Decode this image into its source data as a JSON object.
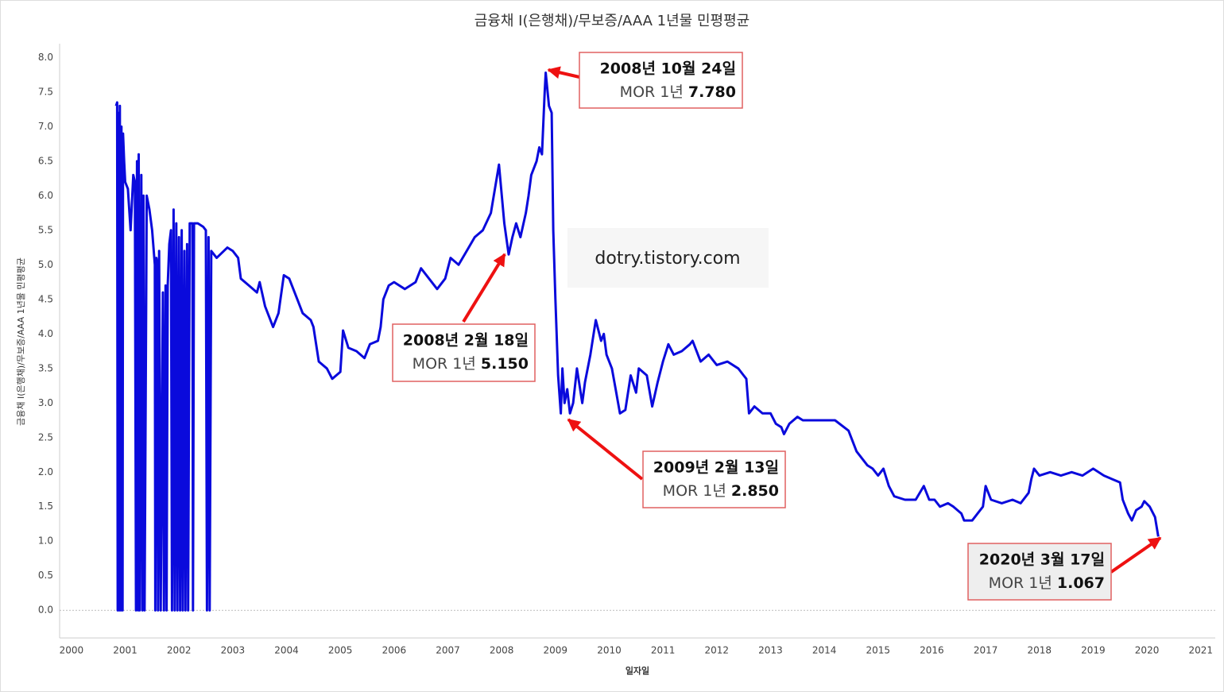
{
  "chart_data": {
    "type": "line",
    "title": "금융채 I(은행채)/무보증/AAA 1년물 민평평균",
    "x_label": "일자일",
    "y_label": "금융채 I(은행채)/무보증/AAA 1년물 민평평균",
    "watermark": "dotry.tistory.com",
    "color": "#0a0adc",
    "xlim": [
      1999.78,
      2021.27
    ],
    "ylim": [
      -0.4,
      8.2
    ],
    "xticks": [
      2000,
      2001,
      2002,
      2003,
      2004,
      2005,
      2006,
      2007,
      2008,
      2009,
      2010,
      2011,
      2012,
      2013,
      2014,
      2015,
      2016,
      2017,
      2018,
      2019,
      2020,
      2021
    ],
    "yticks": [
      {
        "value": 0,
        "label": "0.0"
      },
      {
        "value": 0.5,
        "label": "0.5"
      },
      {
        "value": 1,
        "label": "1.0"
      },
      {
        "value": 1.5,
        "label": "1.5"
      },
      {
        "value": 2,
        "label": "2.0"
      },
      {
        "value": 2.5,
        "label": "2.5"
      },
      {
        "value": 3,
        "label": "3.0"
      },
      {
        "value": 3.5,
        "label": "3.5"
      },
      {
        "value": 4,
        "label": "4.0"
      },
      {
        "value": 4.5,
        "label": "4.5"
      },
      {
        "value": 5,
        "label": "5.0"
      },
      {
        "value": 5.5,
        "label": "5.5"
      },
      {
        "value": 6,
        "label": "6.0"
      },
      {
        "value": 6.5,
        "label": "6.5"
      },
      {
        "value": 7,
        "label": "7.0"
      },
      {
        "value": 7.5,
        "label": "7.5"
      },
      {
        "value": 8,
        "label": "8.0"
      }
    ],
    "x": [
      2000.83,
      2000.85,
      2000.86,
      2000.87,
      2000.89,
      2000.9,
      2000.92,
      2000.93,
      2000.95,
      2000.96,
      2000.98,
      2001.0,
      2001.05,
      2001.1,
      2001.15,
      2001.18,
      2001.2,
      2001.22,
      2001.24,
      2001.25,
      2001.27,
      2001.3,
      2001.32,
      2001.34,
      2001.36,
      2001.4,
      2001.45,
      2001.5,
      2001.55,
      2001.56,
      2001.58,
      2001.6,
      2001.61,
      2001.63,
      2001.66,
      2001.7,
      2001.72,
      2001.75,
      2001.77,
      2001.79,
      2001.82,
      2001.85,
      2001.87,
      2001.9,
      2001.92,
      2001.95,
      2001.97,
      2002.0,
      2002.02,
      2002.05,
      2002.07,
      2002.1,
      2002.12,
      2002.15,
      2002.17,
      2002.2,
      2002.25,
      2002.26,
      2002.28,
      2002.35,
      2002.45,
      2002.5,
      2002.52,
      2002.55,
      2002.57,
      2002.6,
      2002.7,
      2002.9,
      2003.0,
      2003.1,
      2003.15,
      2003.3,
      2003.45,
      2003.5,
      2003.6,
      2003.75,
      2003.85,
      2003.95,
      2004.05,
      2004.2,
      2004.3,
      2004.45,
      2004.5,
      2004.6,
      2004.75,
      2004.85,
      2005.0,
      2005.05,
      2005.15,
      2005.3,
      2005.45,
      2005.55,
      2005.7,
      2005.75,
      2005.8,
      2005.9,
      2006.0,
      2006.2,
      2006.4,
      2006.5,
      2006.7,
      2006.8,
      2006.95,
      2007.05,
      2007.2,
      2007.35,
      2007.5,
      2007.65,
      2007.8,
      2007.95,
      2008.05,
      2008.13,
      2008.2,
      2008.27,
      2008.35,
      2008.45,
      2008.5,
      2008.55,
      2008.65,
      2008.7,
      2008.75,
      2008.8,
      2008.82,
      2008.88,
      2008.93,
      2008.96,
      2009.0,
      2009.05,
      2009.1,
      2009.13,
      2009.17,
      2009.22,
      2009.27,
      2009.33,
      2009.4,
      2009.5,
      2009.55,
      2009.65,
      2009.75,
      2009.85,
      2009.9,
      2009.95,
      2010.05,
      2010.12,
      2010.2,
      2010.3,
      2010.4,
      2010.5,
      2010.55,
      2010.7,
      2010.8,
      2010.9,
      2011.0,
      2011.1,
      2011.2,
      2011.35,
      2011.5,
      2011.55,
      2011.7,
      2011.85,
      2012.0,
      2012.2,
      2012.4,
      2012.5,
      2012.55,
      2012.6,
      2012.7,
      2012.85,
      2013.0,
      2013.1,
      2013.2,
      2013.25,
      2013.35,
      2013.5,
      2013.6,
      2013.9,
      2014.2,
      2014.45,
      2014.6,
      2014.8,
      2014.9,
      2015.0,
      2015.1,
      2015.2,
      2015.3,
      2015.5,
      2015.7,
      2015.85,
      2015.95,
      2016.05,
      2016.15,
      2016.3,
      2016.4,
      2016.55,
      2016.6,
      2016.75,
      2016.85,
      2016.95,
      2017.0,
      2017.1,
      2017.3,
      2017.5,
      2017.65,
      2017.8,
      2017.85,
      2017.9,
      2018.0,
      2018.2,
      2018.4,
      2018.6,
      2018.8,
      2019.0,
      2019.2,
      2019.35,
      2019.5,
      2019.55,
      2019.65,
      2019.72,
      2019.8,
      2019.9,
      2019.95,
      2020.05,
      2020.15,
      2020.21
    ],
    "values": [
      7.3,
      7.35,
      0,
      7.2,
      0,
      7.3,
      0,
      7.0,
      0,
      6.9,
      6.5,
      6.2,
      6.1,
      5.5,
      6.3,
      6.2,
      0,
      6.5,
      0,
      6.6,
      0,
      6.3,
      0,
      6.0,
      0,
      6.0,
      5.8,
      5.5,
      5.0,
      0,
      5.1,
      5.0,
      0,
      5.2,
      0,
      4.6,
      0,
      4.7,
      0,
      4.7,
      5.3,
      5.5,
      0,
      5.8,
      0,
      5.6,
      0,
      5.4,
      0,
      5.5,
      0,
      5.2,
      0,
      5.3,
      0,
      5.6,
      5.6,
      0,
      5.6,
      5.6,
      5.55,
      5.5,
      0,
      5.4,
      0,
      5.2,
      5.1,
      5.25,
      5.2,
      5.1,
      4.8,
      4.7,
      4.6,
      4.75,
      4.4,
      4.1,
      4.3,
      4.85,
      4.8,
      4.5,
      4.3,
      4.2,
      4.1,
      3.6,
      3.5,
      3.35,
      3.45,
      4.05,
      3.8,
      3.75,
      3.65,
      3.85,
      3.9,
      4.1,
      4.5,
      4.7,
      4.75,
      4.65,
      4.75,
      4.95,
      4.75,
      4.65,
      4.8,
      5.1,
      5.0,
      5.2,
      5.4,
      5.5,
      5.75,
      6.45,
      5.6,
      5.15,
      5.4,
      5.6,
      5.4,
      5.75,
      6.0,
      6.3,
      6.5,
      6.7,
      6.6,
      7.5,
      7.78,
      7.3,
      7.2,
      5.5,
      4.5,
      3.4,
      2.85,
      3.5,
      3.0,
      3.2,
      2.85,
      3.0,
      3.5,
      3.0,
      3.3,
      3.7,
      4.2,
      3.9,
      4.0,
      3.7,
      3.5,
      3.2,
      2.85,
      2.9,
      3.4,
      3.15,
      3.5,
      3.4,
      2.95,
      3.3,
      3.6,
      3.85,
      3.7,
      3.75,
      3.85,
      3.9,
      3.6,
      3.7,
      3.55,
      3.6,
      3.5,
      3.4,
      3.35,
      2.85,
      2.95,
      2.85,
      2.85,
      2.7,
      2.65,
      2.55,
      2.7,
      2.8,
      2.75,
      2.75,
      2.75,
      2.6,
      2.3,
      2.1,
      2.05,
      1.95,
      2.05,
      1.8,
      1.65,
      1.6,
      1.6,
      1.8,
      1.6,
      1.6,
      1.5,
      1.55,
      1.5,
      1.4,
      1.3,
      1.3,
      1.4,
      1.5,
      1.8,
      1.6,
      1.55,
      1.6,
      1.55,
      1.7,
      1.9,
      2.05,
      1.95,
      2.0,
      1.95,
      2.0,
      1.95,
      2.05,
      1.95,
      1.9,
      1.85,
      1.6,
      1.4,
      1.3,
      1.45,
      1.5,
      1.58,
      1.5,
      1.35,
      1.067
    ],
    "annotations": [
      {
        "date": "2008년 10월 24일",
        "label": "MOR 1년",
        "value": "7.780"
      },
      {
        "date": "2008년 2월 18일",
        "label": "MOR 1년",
        "value": "5.150"
      },
      {
        "date": "2009년 2월 13일",
        "label": "MOR 1년",
        "value": "2.850"
      },
      {
        "date": "2020년 3월 17일",
        "label": "MOR 1년",
        "value": "1.067"
      }
    ]
  }
}
